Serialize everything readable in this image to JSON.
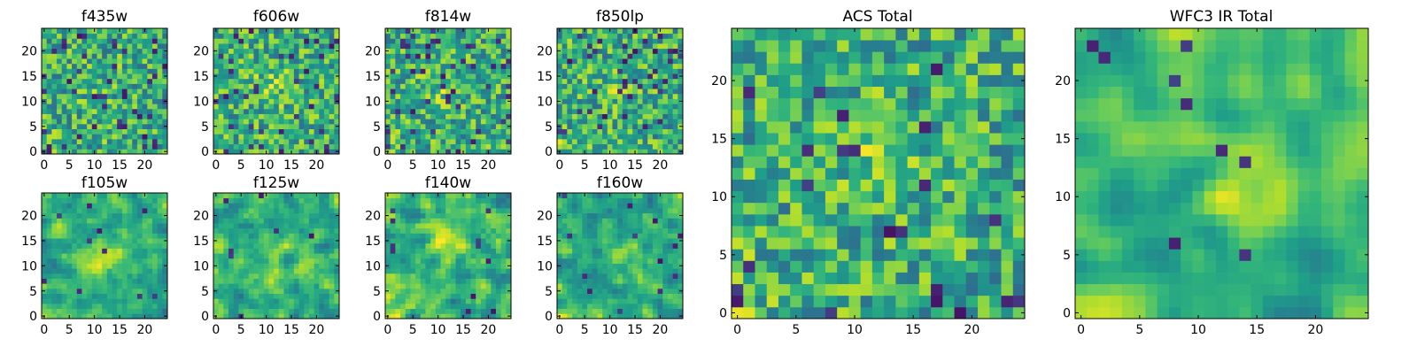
{
  "chart_data": [
    {
      "id": "f435w",
      "type": "heatmap",
      "title": "f435w",
      "size": 25,
      "seed": 11,
      "smooth": 0,
      "dark_frac": 0.07,
      "blob_amp": 0.05,
      "blob": [
        10,
        12
      ],
      "corner_amp": 0.02,
      "xticks": [
        0,
        5,
        10,
        15,
        20
      ],
      "yticks": [
        0,
        5,
        10,
        15,
        20
      ],
      "xlim": [
        -0.5,
        24.5
      ],
      "ylim": [
        -0.5,
        24.5
      ],
      "colormap": "viridis"
    },
    {
      "id": "f606w",
      "type": "heatmap",
      "title": "f606w",
      "size": 25,
      "seed": 23,
      "smooth": 0,
      "dark_frac": 0.06,
      "blob_amp": 0.12,
      "blob": [
        11,
        13
      ],
      "corner_amp": 0.05,
      "xticks": [
        0,
        5,
        10,
        15,
        20
      ],
      "yticks": [
        0,
        5,
        10,
        15,
        20
      ],
      "xlim": [
        -0.5,
        24.5
      ],
      "ylim": [
        -0.5,
        24.5
      ],
      "colormap": "viridis"
    },
    {
      "id": "f814w",
      "type": "heatmap",
      "title": "f814w",
      "size": 25,
      "seed": 37,
      "smooth": 0,
      "dark_frac": 0.06,
      "blob_amp": 0.12,
      "blob": [
        11,
        13
      ],
      "corner_amp": 0.05,
      "xticks": [
        0,
        5,
        10,
        15,
        20
      ],
      "yticks": [
        0,
        5,
        10,
        15,
        20
      ],
      "xlim": [
        -0.5,
        24.5
      ],
      "ylim": [
        -0.5,
        24.5
      ],
      "colormap": "viridis"
    },
    {
      "id": "f850lp",
      "type": "heatmap",
      "title": "f850lp",
      "size": 25,
      "seed": 41,
      "smooth": 0,
      "dark_frac": 0.06,
      "blob_amp": 0.08,
      "blob": [
        11,
        13
      ],
      "corner_amp": 0.1,
      "xticks": [
        0,
        5,
        10,
        15,
        20
      ],
      "yticks": [
        0,
        5,
        10,
        15,
        20
      ],
      "xlim": [
        -0.5,
        24.5
      ],
      "ylim": [
        -0.5,
        24.5
      ],
      "colormap": "viridis"
    },
    {
      "id": "f105w",
      "type": "heatmap",
      "title": "f105w",
      "size": 25,
      "seed": 53,
      "smooth": 1,
      "dark_frac": 0.02,
      "blob_amp": 0.2,
      "blob": [
        11,
        11
      ],
      "corner_amp": 0.18,
      "xticks": [
        0,
        5,
        10,
        15,
        20
      ],
      "yticks": [
        0,
        5,
        10,
        15,
        20
      ],
      "xlim": [
        -0.5,
        24.5
      ],
      "ylim": [
        -0.5,
        24.5
      ],
      "colormap": "viridis"
    },
    {
      "id": "f125w",
      "type": "heatmap",
      "title": "f125w",
      "size": 25,
      "seed": 67,
      "smooth": 1,
      "dark_frac": 0.03,
      "blob_amp": 0.15,
      "blob": [
        12,
        11
      ],
      "corner_amp": 0.15,
      "xticks": [
        0,
        5,
        10,
        15,
        20
      ],
      "yticks": [
        0,
        5,
        10,
        15,
        20
      ],
      "xlim": [
        -0.5,
        24.5
      ],
      "ylim": [
        -0.5,
        24.5
      ],
      "colormap": "viridis"
    },
    {
      "id": "f140w",
      "type": "heatmap",
      "title": "f140w",
      "size": 25,
      "seed": 79,
      "smooth": 1,
      "dark_frac": 0.02,
      "blob_amp": 0.18,
      "blob": [
        11,
        12
      ],
      "corner_amp": 0.15,
      "xticks": [
        0,
        5,
        10,
        15,
        20
      ],
      "yticks": [
        0,
        5,
        10,
        15,
        20
      ],
      "xlim": [
        -0.5,
        24.5
      ],
      "ylim": [
        -0.5,
        24.5
      ],
      "colormap": "viridis"
    },
    {
      "id": "f160w",
      "type": "heatmap",
      "title": "f160w",
      "size": 25,
      "seed": 83,
      "smooth": 1,
      "dark_frac": 0.03,
      "blob_amp": 0.18,
      "blob": [
        12,
        12
      ],
      "corner_amp": 0.15,
      "xticks": [
        0,
        5,
        10,
        15,
        20
      ],
      "yticks": [
        0,
        5,
        10,
        15,
        20
      ],
      "xlim": [
        -0.5,
        24.5
      ],
      "ylim": [
        -0.5,
        24.5
      ],
      "colormap": "viridis"
    },
    {
      "id": "acs_total",
      "type": "heatmap",
      "title": "ACS Total",
      "size": 25,
      "seed": 97,
      "smooth": 0,
      "dark_frac": 0.04,
      "blob_amp": 0.1,
      "blob": [
        11,
        13
      ],
      "corner_amp": 0.1,
      "xticks": [
        0,
        5,
        10,
        15,
        20
      ],
      "yticks": [
        0,
        5,
        10,
        15,
        20
      ],
      "xlim": [
        -0.5,
        24.5
      ],
      "ylim": [
        -0.5,
        24.5
      ],
      "colormap": "viridis"
    },
    {
      "id": "wfc3_ir_total",
      "type": "heatmap",
      "title": "WFC3 IR Total",
      "size": 25,
      "seed": 101,
      "smooth": 2,
      "dark_frac": 0.01,
      "blob_amp": 0.25,
      "blob": [
        12,
        12
      ],
      "corner_amp": 0.25,
      "xticks": [
        0,
        5,
        10,
        15,
        20
      ],
      "yticks": [
        0,
        5,
        10,
        15,
        20
      ],
      "xlim": [
        -0.5,
        24.5
      ],
      "ylim": [
        -0.5,
        24.5
      ],
      "colormap": "viridis"
    }
  ]
}
